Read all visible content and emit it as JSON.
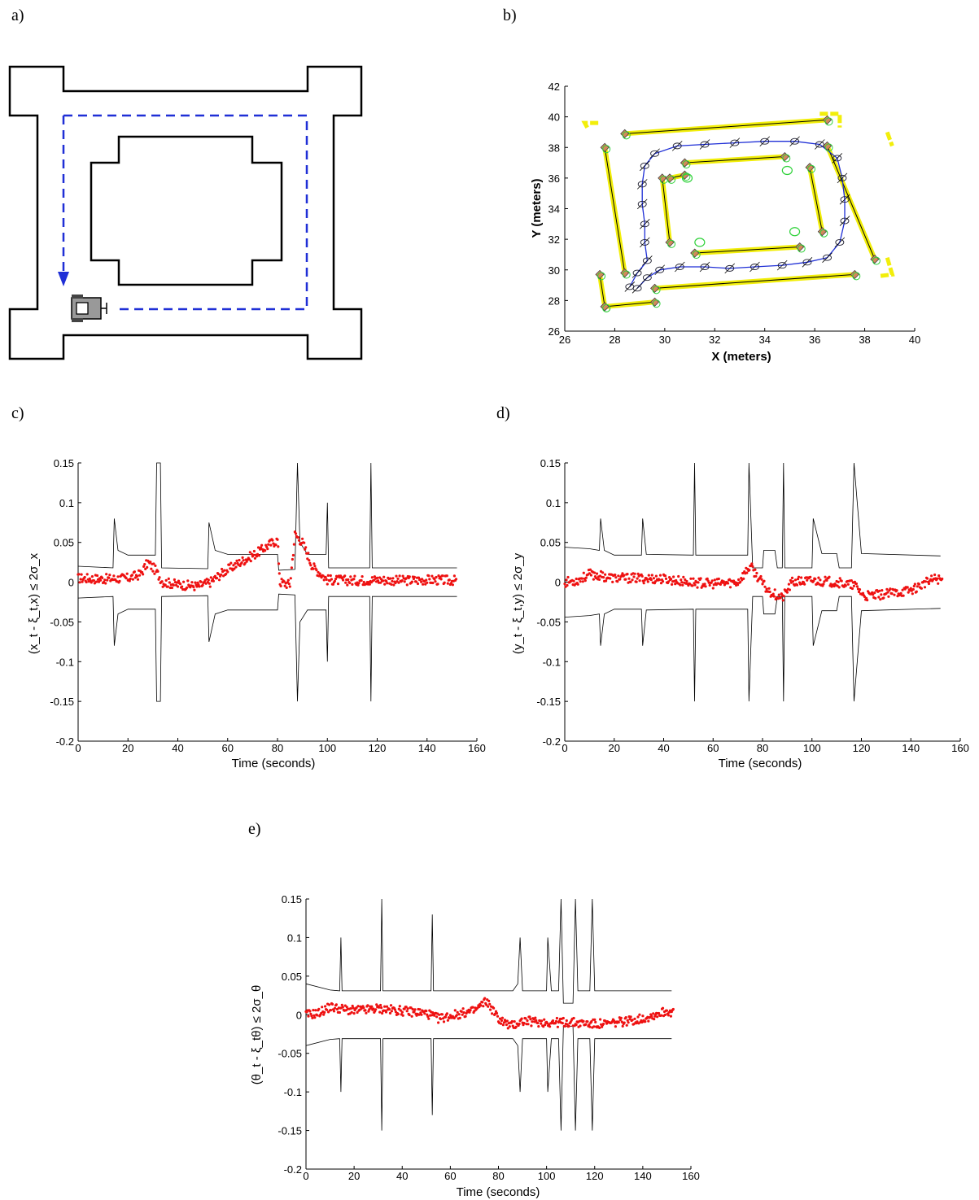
{
  "panels": [
    {
      "label": "a)"
    },
    {
      "label": "b)"
    },
    {
      "label": "c)"
    },
    {
      "label": "d)"
    },
    {
      "label": "e)"
    }
  ],
  "colors": {
    "path": "#1f2fd6",
    "map_wall": "#000000",
    "yellow": "#f2ee0a",
    "landmark": "#d28a5a",
    "green": "#2fd23a",
    "error": "#ee1111",
    "bound": "#000000"
  },
  "chart_data": [
    {
      "type": "diagram",
      "panel": "a)",
      "content": "floor-plan",
      "icons": [
        "robot-icon",
        "arrow-down-icon"
      ]
    },
    {
      "type": "scatter",
      "panel": "b)",
      "xlabel": "X (meters)",
      "ylabel": "Y (meters)",
      "xlim": [
        26,
        40
      ],
      "ylim": [
        26,
        42
      ],
      "xticks": [
        26,
        28,
        30,
        32,
        34,
        36,
        38,
        40
      ],
      "yticks": [
        26,
        28,
        30,
        32,
        34,
        36,
        38,
        40,
        42
      ],
      "map_segments": [
        [
          [
            28.4,
            38.9
          ],
          [
            36.5,
            39.8
          ]
        ],
        [
          [
            27.6,
            38.0
          ],
          [
            28.4,
            29.8
          ]
        ],
        [
          [
            29.6,
            28.8
          ],
          [
            37.6,
            29.7
          ]
        ],
        [
          [
            36.5,
            38.1
          ],
          [
            38.4,
            30.7
          ]
        ],
        [
          [
            29.9,
            36.0
          ],
          [
            30.2,
            31.8
          ]
        ],
        [
          [
            30.2,
            36.0
          ],
          [
            30.8,
            36.2
          ]
        ],
        [
          [
            30.8,
            37.0
          ],
          [
            34.8,
            37.4
          ]
        ],
        [
          [
            35.8,
            36.7
          ],
          [
            36.3,
            32.5
          ]
        ],
        [
          [
            31.2,
            31.1
          ],
          [
            35.4,
            31.5
          ]
        ],
        [
          [
            27.4,
            29.7
          ],
          [
            27.6,
            27.6
          ]
        ],
        [
          [
            27.6,
            27.6
          ],
          [
            29.6,
            27.9
          ]
        ]
      ],
      "corner_markers": [
        [
          26.8,
          39.6
        ],
        [
          36.9,
          40.0
        ],
        [
          39.0,
          38.4
        ],
        [
          39.0,
          30.3
        ]
      ],
      "path": [
        [
          28.9,
          28.8
        ],
        [
          29.3,
          29.5
        ],
        [
          29.8,
          30.0
        ],
        [
          30.6,
          30.2
        ],
        [
          31.6,
          30.2
        ],
        [
          32.6,
          30.1
        ],
        [
          33.6,
          30.2
        ],
        [
          34.7,
          30.3
        ],
        [
          35.7,
          30.5
        ],
        [
          36.5,
          30.8
        ],
        [
          37.0,
          31.8
        ],
        [
          37.2,
          33.2
        ],
        [
          37.2,
          34.6
        ],
        [
          37.1,
          36.0
        ],
        [
          36.9,
          37.3
        ],
        [
          36.2,
          38.2
        ],
        [
          35.2,
          38.4
        ],
        [
          34.0,
          38.4
        ],
        [
          32.8,
          38.3
        ],
        [
          31.6,
          38.2
        ],
        [
          30.5,
          38.1
        ],
        [
          29.6,
          37.6
        ],
        [
          29.2,
          36.8
        ],
        [
          29.1,
          35.6
        ],
        [
          29.1,
          34.3
        ],
        [
          29.2,
          33.0
        ],
        [
          29.2,
          31.8
        ],
        [
          29.3,
          30.6
        ],
        [
          28.9,
          29.8
        ],
        [
          28.6,
          28.9
        ]
      ]
    },
    {
      "type": "line",
      "panel": "c)",
      "xlabel": "Time (seconds)",
      "ylabel": "(x_t - ξ_t,x) ≤ 2σ_x",
      "xlim": [
        0,
        160
      ],
      "ylim": [
        -0.2,
        0.15
      ],
      "xticks": [
        0,
        20,
        40,
        60,
        80,
        100,
        120,
        140,
        160
      ],
      "yticks": [
        0.15,
        0.1,
        0.05,
        0,
        -0.05,
        -0.1,
        -0.15,
        -0.2
      ],
      "bound": [
        [
          0,
          0.02
        ],
        [
          14,
          0.018
        ],
        [
          14.5,
          0.08
        ],
        [
          16,
          0.04
        ],
        [
          20,
          0.034
        ],
        [
          31,
          0.034
        ],
        [
          31.5,
          0.15
        ],
        [
          33,
          0.15
        ],
        [
          33.5,
          0.018
        ],
        [
          52,
          0.017
        ],
        [
          52.5,
          0.075
        ],
        [
          55,
          0.04
        ],
        [
          60,
          0.035
        ],
        [
          80,
          0.035
        ],
        [
          80.5,
          0.015
        ],
        [
          87,
          0.016
        ],
        [
          88,
          0.15
        ],
        [
          89,
          0.05
        ],
        [
          92,
          0.035
        ],
        [
          99.5,
          0.035
        ],
        [
          100,
          0.1
        ],
        [
          100.5,
          0.018
        ],
        [
          117,
          0.018
        ],
        [
          117.5,
          0.15
        ],
        [
          118,
          0.018
        ],
        [
          152,
          0.018
        ]
      ],
      "error": [
        [
          0,
          0.005
        ],
        [
          10,
          0.004
        ],
        [
          20,
          0.005
        ],
        [
          25,
          0.01
        ],
        [
          28,
          0.025
        ],
        [
          31,
          0.015
        ],
        [
          34,
          0.0
        ],
        [
          40,
          -0.003
        ],
        [
          48,
          -0.005
        ],
        [
          53,
          0.0
        ],
        [
          58,
          0.012
        ],
        [
          65,
          0.025
        ],
        [
          72,
          0.037
        ],
        [
          77,
          0.048
        ],
        [
          80,
          0.053
        ],
        [
          81,
          0.0
        ],
        [
          85,
          -0.003
        ],
        [
          87,
          0.06
        ],
        [
          90,
          0.05
        ],
        [
          94,
          0.02
        ],
        [
          100,
          0.003
        ],
        [
          110,
          0.002
        ],
        [
          120,
          0.003
        ],
        [
          130,
          0.002
        ],
        [
          140,
          0.003
        ],
        [
          152,
          0.002
        ]
      ]
    },
    {
      "type": "line",
      "panel": "d)",
      "xlabel": "Time (seconds)",
      "ylabel": "(y_t - ξ_t,y) ≤ 2σ_y",
      "xlim": [
        0,
        160
      ],
      "ylim": [
        -0.2,
        0.15
      ],
      "xticks": [
        0,
        20,
        40,
        60,
        80,
        100,
        120,
        140,
        160
      ],
      "yticks": [
        0.15,
        0.1,
        0.05,
        0,
        -0.05,
        -0.1,
        -0.15,
        -0.2
      ],
      "bound": [
        [
          0,
          0.044
        ],
        [
          10,
          0.042
        ],
        [
          14,
          0.04
        ],
        [
          14.5,
          0.08
        ],
        [
          16,
          0.04
        ],
        [
          20,
          0.034
        ],
        [
          31,
          0.034
        ],
        [
          31.5,
          0.08
        ],
        [
          33,
          0.035
        ],
        [
          52,
          0.034
        ],
        [
          52.5,
          0.15
        ],
        [
          53,
          0.034
        ],
        [
          74,
          0.034
        ],
        [
          74.5,
          0.15
        ],
        [
          76,
          0.018
        ],
        [
          80,
          0.018
        ],
        [
          80.5,
          0.04
        ],
        [
          85,
          0.04
        ],
        [
          86,
          0.018
        ],
        [
          88,
          0.018
        ],
        [
          88.5,
          0.15
        ],
        [
          89,
          0.018
        ],
        [
          100,
          0.018
        ],
        [
          100.5,
          0.08
        ],
        [
          104,
          0.036
        ],
        [
          110,
          0.036
        ],
        [
          111,
          0.018
        ],
        [
          116,
          0.018
        ],
        [
          117,
          0.15
        ],
        [
          120,
          0.036
        ],
        [
          152,
          0.033
        ]
      ],
      "error": [
        [
          0,
          0.0
        ],
        [
          5,
          0.002
        ],
        [
          10,
          0.01
        ],
        [
          20,
          0.005
        ],
        [
          30,
          0.005
        ],
        [
          40,
          0.004
        ],
        [
          50,
          0.0
        ],
        [
          60,
          -0.002
        ],
        [
          70,
          0.0
        ],
        [
          75,
          0.02
        ],
        [
          82,
          -0.01
        ],
        [
          88,
          -0.02
        ],
        [
          92,
          0.0
        ],
        [
          100,
          0.002
        ],
        [
          110,
          0.0
        ],
        [
          118,
          -0.005
        ],
        [
          121,
          -0.018
        ],
        [
          130,
          -0.015
        ],
        [
          140,
          -0.01
        ],
        [
          150,
          0.005
        ],
        [
          153,
          0.002
        ]
      ]
    },
    {
      "type": "line",
      "panel": "e)",
      "xlabel": "Time (seconds)",
      "ylabel": "(θ_t - ξ_tθ) ≤ 2σ_θ",
      "xlim": [
        0,
        160
      ],
      "ylim": [
        -0.2,
        0.15
      ],
      "xticks": [
        0,
        20,
        40,
        60,
        80,
        100,
        120,
        140,
        160
      ],
      "yticks": [
        0.15,
        0.1,
        0.05,
        0,
        -0.05,
        -0.1,
        -0.15,
        -0.2
      ],
      "bound": [
        [
          0,
          0.04
        ],
        [
          10,
          0.032
        ],
        [
          14,
          0.031
        ],
        [
          14.5,
          0.1
        ],
        [
          15,
          0.031
        ],
        [
          31,
          0.031
        ],
        [
          31.5,
          0.15
        ],
        [
          32,
          0.031
        ],
        [
          52,
          0.031
        ],
        [
          52.5,
          0.13
        ],
        [
          53,
          0.031
        ],
        [
          86,
          0.031
        ],
        [
          88,
          0.04
        ],
        [
          89,
          0.1
        ],
        [
          90,
          0.031
        ],
        [
          100,
          0.031
        ],
        [
          100.5,
          0.1
        ],
        [
          102,
          0.031
        ],
        [
          105,
          0.031
        ],
        [
          106,
          0.15
        ],
        [
          107,
          0.015
        ],
        [
          111,
          0.015
        ],
        [
          112,
          0.15
        ],
        [
          113,
          0.031
        ],
        [
          118,
          0.031
        ],
        [
          119,
          0.15
        ],
        [
          120,
          0.031
        ],
        [
          152,
          0.031
        ]
      ],
      "error": [
        [
          0,
          0.0
        ],
        [
          5,
          0.002
        ],
        [
          10,
          0.01
        ],
        [
          20,
          0.005
        ],
        [
          30,
          0.008
        ],
        [
          40,
          0.005
        ],
        [
          50,
          0.002
        ],
        [
          55,
          -0.005
        ],
        [
          62,
          0.0
        ],
        [
          70,
          0.005
        ],
        [
          75,
          0.018
        ],
        [
          80,
          -0.005
        ],
        [
          85,
          -0.015
        ],
        [
          90,
          -0.008
        ],
        [
          100,
          -0.01
        ],
        [
          110,
          -0.01
        ],
        [
          120,
          -0.012
        ],
        [
          125,
          -0.012
        ],
        [
          140,
          -0.005
        ],
        [
          150,
          0.005
        ],
        [
          153,
          0.003
        ]
      ]
    }
  ]
}
